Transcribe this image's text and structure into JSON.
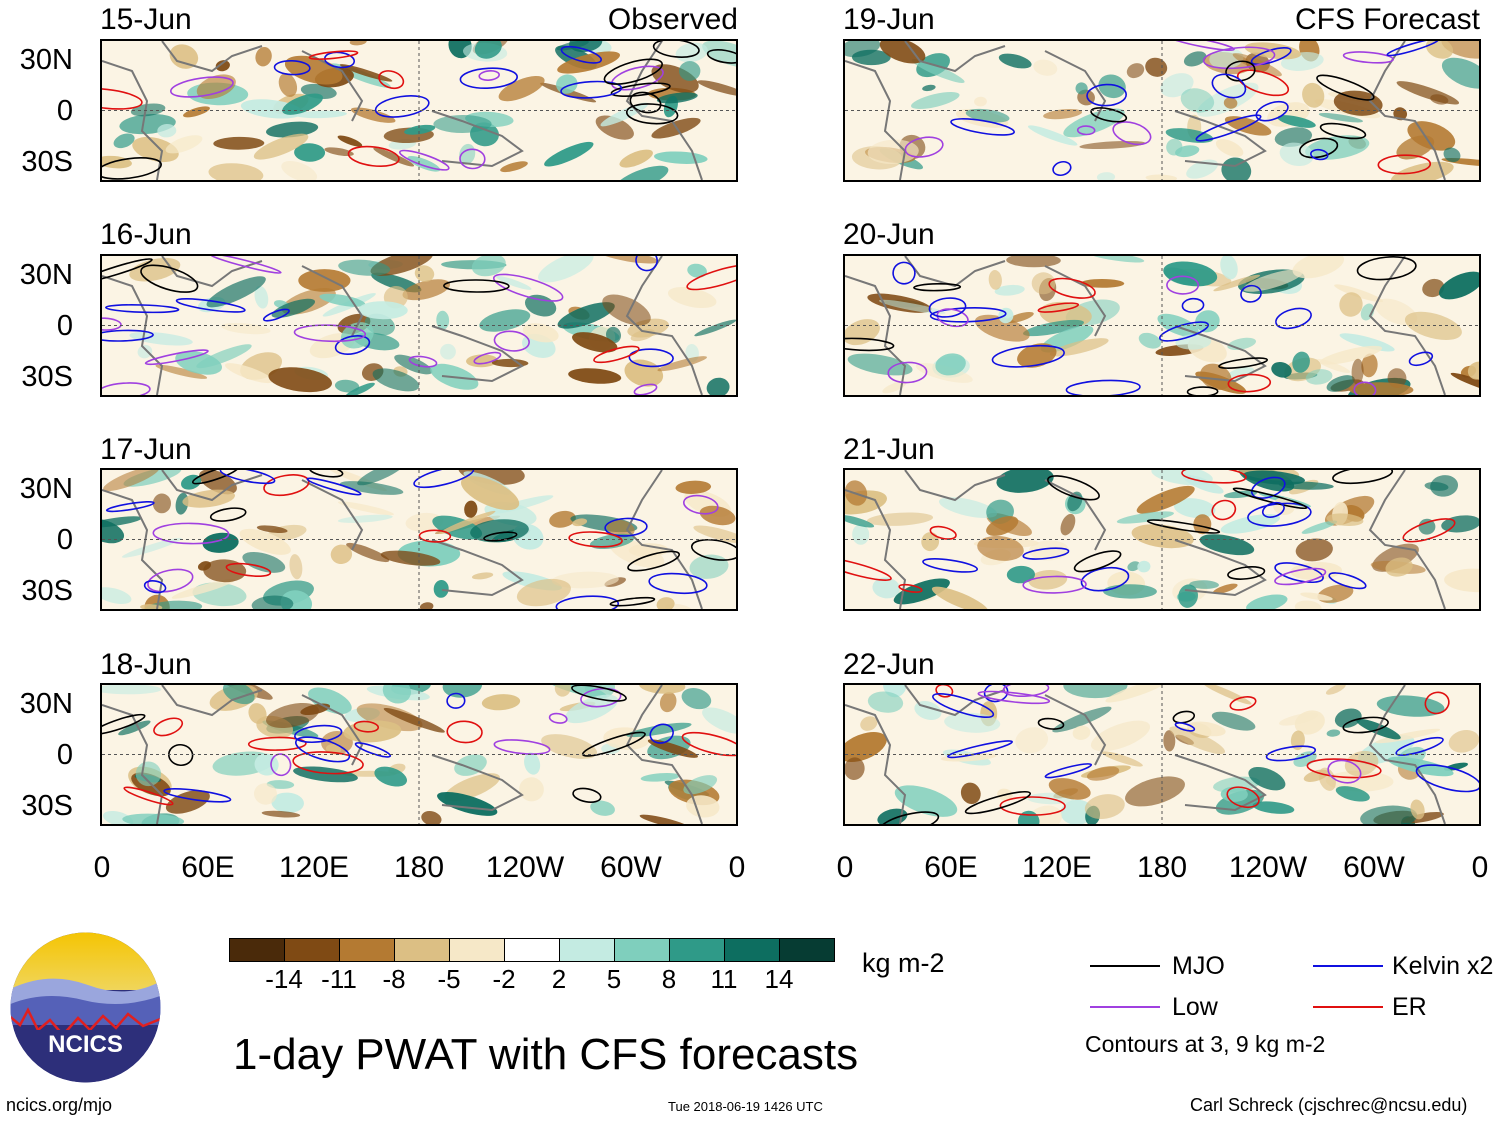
{
  "titles": {
    "left": "Observed",
    "right": "CFS Forecast",
    "main": "1-day PWAT with CFS forecasts"
  },
  "panels_left": [
    {
      "date": "15-Jun"
    },
    {
      "date": "16-Jun"
    },
    {
      "date": "17-Jun"
    },
    {
      "date": "18-Jun"
    }
  ],
  "panels_right": [
    {
      "date": "19-Jun"
    },
    {
      "date": "20-Jun"
    },
    {
      "date": "21-Jun"
    },
    {
      "date": "22-Jun"
    }
  ],
  "lat_labels": [
    "30N",
    "0",
    "30S"
  ],
  "lon_labels": [
    "0",
    "60E",
    "120E",
    "180",
    "120W",
    "60W",
    "0"
  ],
  "colorbar": {
    "colors": [
      "#4a2a0a",
      "#7f4a14",
      "#b47a32",
      "#dcbf84",
      "#f6e8c8",
      "#ffffff",
      "#c4ebe2",
      "#7fcfbd",
      "#2f9a88",
      "#0d6e60",
      "#063c33"
    ],
    "ticks": [
      "-14",
      "-11",
      "-8",
      "-5",
      "-2",
      "2",
      "5",
      "8",
      "11",
      "14"
    ],
    "units": "kg m-2"
  },
  "legend": {
    "items": [
      {
        "label": "MJO",
        "color": "#000000"
      },
      {
        "label": "Kelvin x2",
        "color": "#1010e0"
      },
      {
        "label": "Low",
        "color": "#a040e0"
      },
      {
        "label": "ER",
        "color": "#e01010"
      }
    ],
    "note": "Contours at 3, 9 kg m-2"
  },
  "logo": {
    "text": "NCICS"
  },
  "footer": {
    "url": "ncics.org/mjo",
    "timestamp": "Tue 2018-06-19 1426 UTC",
    "author": "Carl Schreck (cjschrec@ncsu.edu)"
  }
}
